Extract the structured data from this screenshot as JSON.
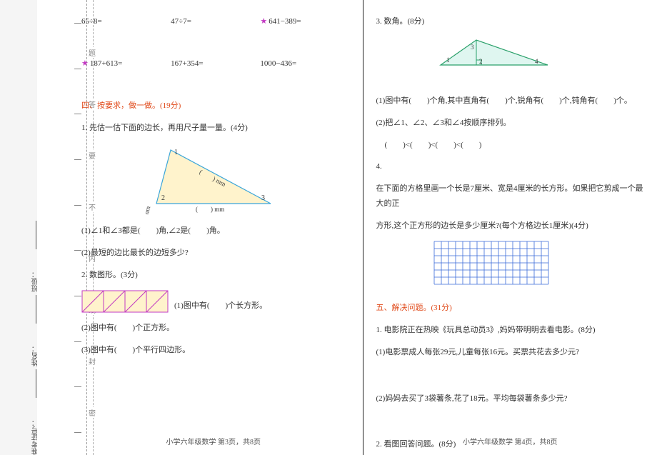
{
  "info": {
    "exam_id_label": "准考证号：",
    "name_label": "姓名：",
    "class_label": "班级："
  },
  "fold": {
    "chars": [
      "密",
      "封",
      "线",
      "内",
      "不",
      "要",
      "答",
      "题"
    ]
  },
  "left": {
    "calc_row1": {
      "eq1": "65÷8=",
      "eq2": "47÷7=",
      "eq3_star": "★",
      "eq3": "641−389="
    },
    "calc_row2": {
      "eq1_star": "★",
      "eq1": "187+613=",
      "eq2": "167+354=",
      "eq3": "1000−436="
    },
    "section4": "四、按要求，做一做。(19分)",
    "q1": "1. 先估一估下面的边长，再用尺子量一量。(4分)",
    "triangle": {
      "fill": "#fff3cc",
      "stroke": "#3aa5d9",
      "labels": {
        "v1": "1",
        "v2": "2",
        "v3": "3",
        "side": ") mm",
        "prefix": "("
      },
      "side_text_a": "(　　) mm",
      "side_text_b": "(　　) mm",
      "side_text_c": "(　　) mm"
    },
    "q1_1": "(1)∠1和∠3都是(　　)角,∠2是(　　)角。",
    "q1_2": "(2)最短的边比最长的边短多少?",
    "q2": "2. 数图形。(3分)",
    "parallelogram": {
      "fill": "#fff3cc",
      "stroke": "#c238c2"
    },
    "q2_1": "(1)图中有(　　)个长方形。",
    "q2_2": "(2)图中有(　　)个正方形。",
    "q2_3": "(3)图中有(　　)个平行四边形。",
    "footer": "小学六年级数学  第3页，共8页"
  },
  "right": {
    "q3": "3. 数角。(8分)",
    "angle_shape": {
      "fill": "#dff6f0",
      "stroke": "#2aa06a",
      "labels": {
        "a1": "1",
        "a2": "2",
        "a3": "3",
        "a4": "4"
      }
    },
    "q3_1": "(1)图中有(　　)个角,其中直角有(　　)个,锐角有(　　)个,钝角有(　　)个。",
    "q3_2": "(2)把∠1、∠2、∠3和∠4按顺序排列。",
    "q3_2_blank": "(　　)<(　　)<(　　)<(　　)",
    "q4_label": "4.",
    "q4_text1": "在下面的方格里画一个长是7厘米、宽是4厘米的长方形。如果把它剪成一个最大的正",
    "q4_text2": "方形,这个正方形的边长是多少厘米?(每个方格边长1厘米)(4分)",
    "grid": {
      "stroke": "#3a6ad9",
      "cols": 16,
      "rows": 6,
      "cell": 10
    },
    "section5": "五、解决问题。(31分)",
    "q5_1": "1. 电影院正在热映《玩具总动员3》,妈妈带明明去看电影。(8分)",
    "q5_1_1": "(1)电影票成人每张29元,儿童每张16元。买票共花去多少元?",
    "q5_1_2": "(2)妈妈去买了3袋薯条,花了18元。平均每袋薯条多少元?",
    "q5_2": "2. 看图回答问题。(8分)",
    "footer": "小学六年级数学  第4页，共8页"
  }
}
